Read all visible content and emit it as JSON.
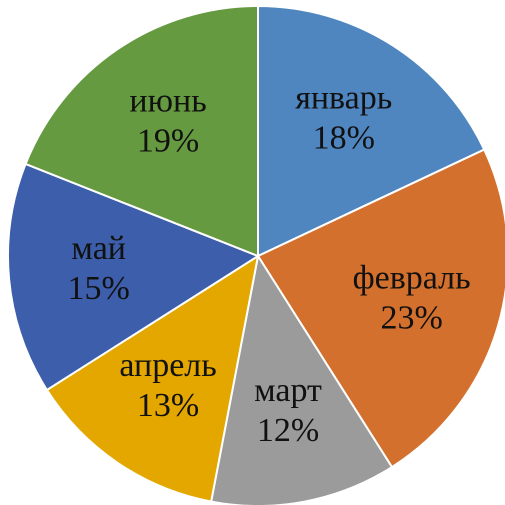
{
  "chart_data": {
    "type": "pie",
    "categories": [
      "январь",
      "февраль",
      "март",
      "апрель",
      "май",
      "июнь"
    ],
    "values": [
      18,
      23,
      12,
      13,
      15,
      19
    ],
    "value_labels": [
      "18%",
      "23%",
      "12%",
      "13%",
      "15%",
      "19%"
    ],
    "colors": [
      "#4f86c0",
      "#d4702d",
      "#9b9b9b",
      "#e3a700",
      "#3c5eab",
      "#669a40"
    ]
  }
}
